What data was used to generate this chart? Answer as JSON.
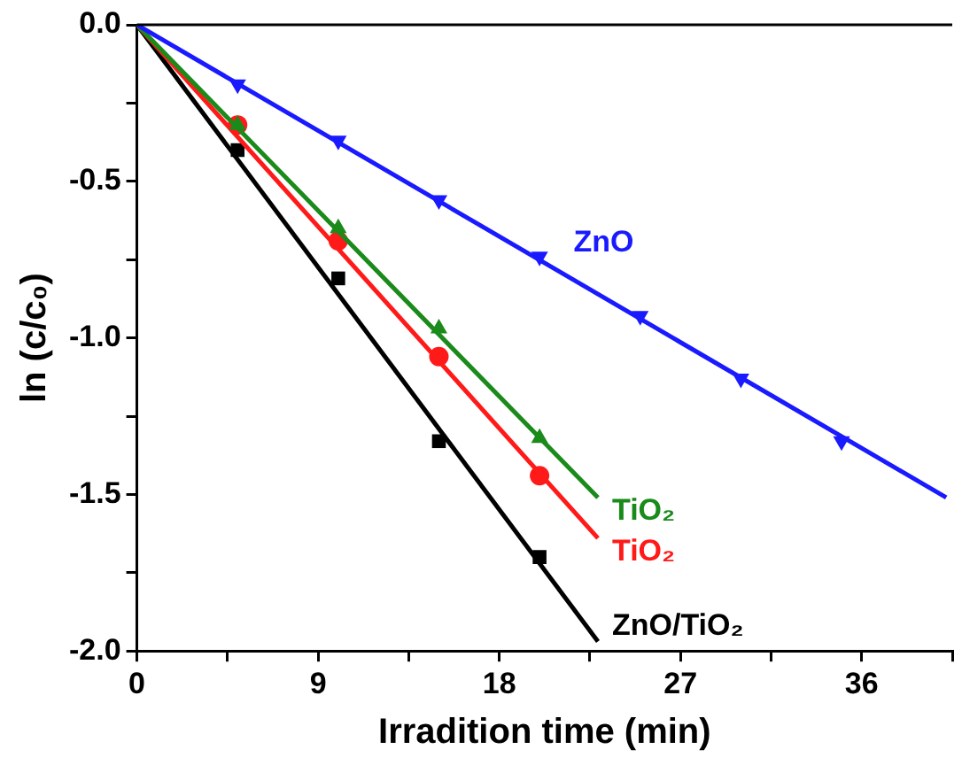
{
  "chart_data": {
    "type": "scatter",
    "xlabel": "Irradition time (min)",
    "ylabel": "ln (c/c₀)",
    "xlim": [
      0,
      40.5
    ],
    "xticks": [
      0,
      {
        "value": 4.5,
        "label": null
      },
      9,
      {
        "value": 13.5,
        "label": null
      },
      18,
      {
        "value": 22.5,
        "label": null
      },
      27,
      {
        "value": 31.5,
        "label": null
      },
      36,
      {
        "value": 40.5,
        "label": null
      }
    ],
    "ylim": [
      -2,
      0
    ],
    "yticks": [
      {
        "value": -2,
        "label": "-2.0"
      },
      {
        "value": -1.75,
        "label": null
      },
      {
        "value": -1.5,
        "label": "-1.5"
      },
      {
        "value": -1.25,
        "label": null
      },
      {
        "value": -1,
        "label": "-1.0"
      },
      {
        "value": -0.75,
        "label": null
      },
      {
        "value": -0.5,
        "label": "-0.5"
      },
      {
        "value": -0.25,
        "label": null
      },
      {
        "value": 0,
        "label": "0.0"
      }
    ],
    "grid": false,
    "legend": false,
    "series": [
      {
        "type": "scatter",
        "name": "ZnO",
        "color": "#1a1aff",
        "marker": "triangle-down",
        "x": [
          5,
          10,
          15,
          20,
          25,
          30,
          35
        ],
        "values": [
          -0.19,
          -0.37,
          -0.56,
          -0.74,
          -0.93,
          -1.13,
          -1.33
        ]
      },
      {
        "type": "line",
        "color": "#1a1aff",
        "marker": "none",
        "x": [
          0,
          40.2
        ],
        "values": [
          0,
          -1.51
        ]
      },
      {
        "type": "scatter",
        "name": "TiO₂",
        "color": "#1a8a1a",
        "marker": "triangle",
        "x": [
          5,
          10,
          15,
          20
        ],
        "values": [
          -0.32,
          -0.65,
          -0.97,
          -1.32
        ]
      },
      {
        "type": "line",
        "color": "#1a8a1a",
        "marker": "none",
        "x": [
          0,
          22.9
        ],
        "values": [
          0,
          -1.51
        ]
      },
      {
        "type": "scatter",
        "name": "TiO₂",
        "color": "#ff1a1a",
        "marker": "circle",
        "x": [
          5,
          10,
          15,
          20
        ],
        "values": [
          -0.32,
          -0.69,
          -1.06,
          -1.44
        ]
      },
      {
        "type": "line",
        "color": "#ff1a1a",
        "marker": "none",
        "x": [
          0,
          22.9
        ],
        "values": [
          0,
          -1.64
        ]
      },
      {
        "type": "scatter",
        "name": "ZnO/TiO₂",
        "color": "#000000",
        "marker": "square",
        "x": [
          5,
          10,
          15,
          20
        ],
        "values": [
          -0.4,
          -0.81,
          -1.33,
          -1.7
        ]
      },
      {
        "type": "line",
        "color": "#000000",
        "marker": "none",
        "x": [
          0,
          22.9
        ],
        "values": [
          0,
          -1.97
        ]
      }
    ]
  }
}
